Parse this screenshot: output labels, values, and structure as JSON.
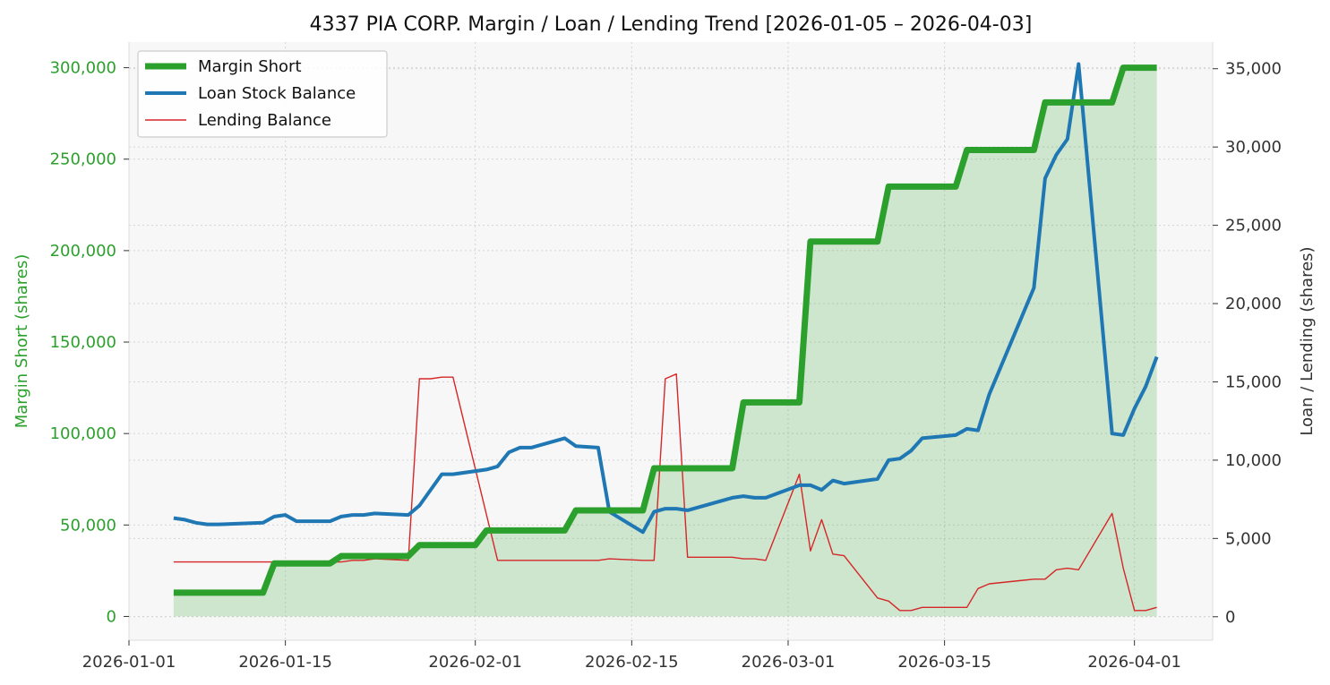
{
  "chart_data": {
    "type": "line",
    "title": "4337 PIA CORP. Margin / Loan / Lending Trend [2026-01-05 – 2026-04-03]",
    "xlabel": "",
    "ylabel_left": "Margin Short (shares)",
    "ylabel_right": "Loan / Lending (shares)",
    "ylim_left": [
      -13000,
      314000
    ],
    "ylim_right": [
      -1500,
      36700
    ],
    "xlim": [
      "2026-01-01",
      "2026-04-08"
    ],
    "x_ticks": [
      "2026-01-01",
      "2026-01-15",
      "2026-02-01",
      "2026-02-15",
      "2026-03-01",
      "2026-03-15",
      "2026-04-01"
    ],
    "y_ticks_left": [
      0,
      50000,
      100000,
      150000,
      200000,
      250000,
      300000
    ],
    "y_ticks_left_labels": [
      "0",
      "50,000",
      "100,000",
      "150,000",
      "200,000",
      "250,000",
      "300,000"
    ],
    "y_ticks_right": [
      0,
      5000,
      10000,
      15000,
      20000,
      25000,
      30000,
      35000
    ],
    "y_ticks_right_labels": [
      "0",
      "5,000",
      "10,000",
      "15,000",
      "20,000",
      "25,000",
      "30,000",
      "35,000"
    ],
    "grid": true,
    "legend_position": "top-left",
    "series": [
      {
        "name": "Margin Short",
        "axis": "left",
        "color": "#2ca02c",
        "fill": true,
        "points": [
          [
            "2026-01-05",
            13000
          ],
          [
            "2026-01-13",
            13000
          ],
          [
            "2026-01-14",
            29000
          ],
          [
            "2026-01-19",
            29000
          ],
          [
            "2026-01-20",
            33000
          ],
          [
            "2026-01-26",
            33000
          ],
          [
            "2026-01-27",
            39000
          ],
          [
            "2026-02-01",
            39000
          ],
          [
            "2026-02-02",
            47000
          ],
          [
            "2026-02-09",
            47000
          ],
          [
            "2026-02-10",
            58000
          ],
          [
            "2026-02-16",
            58000
          ],
          [
            "2026-02-17",
            81000
          ],
          [
            "2026-02-24",
            81000
          ],
          [
            "2026-02-25",
            117000
          ],
          [
            "2026-03-02",
            117000
          ],
          [
            "2026-03-03",
            205000
          ],
          [
            "2026-03-09",
            205000
          ],
          [
            "2026-03-10",
            235000
          ],
          [
            "2026-03-16",
            235000
          ],
          [
            "2026-03-17",
            255000
          ],
          [
            "2026-03-23",
            255000
          ],
          [
            "2026-03-24",
            281000
          ],
          [
            "2026-03-30",
            281000
          ],
          [
            "2026-03-31",
            300000
          ],
          [
            "2026-04-03",
            300000
          ]
        ]
      },
      {
        "name": "Loan Stock Balance",
        "axis": "right",
        "color": "#1f77b4",
        "fill": false,
        "points": [
          [
            "2026-01-05",
            6300
          ],
          [
            "2026-01-06",
            6200
          ],
          [
            "2026-01-07",
            6000
          ],
          [
            "2026-01-08",
            5900
          ],
          [
            "2026-01-09",
            5900
          ],
          [
            "2026-01-13",
            6000
          ],
          [
            "2026-01-14",
            6400
          ],
          [
            "2026-01-15",
            6500
          ],
          [
            "2026-01-16",
            6100
          ],
          [
            "2026-01-19",
            6100
          ],
          [
            "2026-01-20",
            6400
          ],
          [
            "2026-01-21",
            6500
          ],
          [
            "2026-01-22",
            6500
          ],
          [
            "2026-01-23",
            6600
          ],
          [
            "2026-01-26",
            6500
          ],
          [
            "2026-01-27",
            7100
          ],
          [
            "2026-01-28",
            8100
          ],
          [
            "2026-01-29",
            9100
          ],
          [
            "2026-01-30",
            9100
          ],
          [
            "2026-02-02",
            9400
          ],
          [
            "2026-02-03",
            9600
          ],
          [
            "2026-02-04",
            10500
          ],
          [
            "2026-02-05",
            10800
          ],
          [
            "2026-02-06",
            10800
          ],
          [
            "2026-02-09",
            11400
          ],
          [
            "2026-02-10",
            10900
          ],
          [
            "2026-02-12",
            10800
          ],
          [
            "2026-02-13",
            6700
          ],
          [
            "2026-02-16",
            5400
          ],
          [
            "2026-02-17",
            6700
          ],
          [
            "2026-02-18",
            6900
          ],
          [
            "2026-02-19",
            6900
          ],
          [
            "2026-02-20",
            6800
          ],
          [
            "2026-02-24",
            7600
          ],
          [
            "2026-02-25",
            7700
          ],
          [
            "2026-02-26",
            7600
          ],
          [
            "2026-02-27",
            7600
          ],
          [
            "2026-03-02",
            8400
          ],
          [
            "2026-03-03",
            8400
          ],
          [
            "2026-03-04",
            8100
          ],
          [
            "2026-03-05",
            8700
          ],
          [
            "2026-03-06",
            8500
          ],
          [
            "2026-03-09",
            8800
          ],
          [
            "2026-03-10",
            10000
          ],
          [
            "2026-03-11",
            10100
          ],
          [
            "2026-03-12",
            10600
          ],
          [
            "2026-03-13",
            11400
          ],
          [
            "2026-03-16",
            11600
          ],
          [
            "2026-03-17",
            12000
          ],
          [
            "2026-03-18",
            11900
          ],
          [
            "2026-03-19",
            14200
          ],
          [
            "2026-03-23",
            21000
          ],
          [
            "2026-03-24",
            28000
          ],
          [
            "2026-03-25",
            29500
          ],
          [
            "2026-03-26",
            30500
          ],
          [
            "2026-03-27",
            35300
          ],
          [
            "2026-03-30",
            11700
          ],
          [
            "2026-03-31",
            11600
          ],
          [
            "2026-04-01",
            13300
          ],
          [
            "2026-04-02",
            14700
          ],
          [
            "2026-04-03",
            16600
          ]
        ]
      },
      {
        "name": "Lending Balance",
        "axis": "right",
        "color": "#d62728",
        "fill": false,
        "points": [
          [
            "2026-01-05",
            3500
          ],
          [
            "2026-01-19",
            3500
          ],
          [
            "2026-01-20",
            3500
          ],
          [
            "2026-01-21",
            3600
          ],
          [
            "2026-01-22",
            3600
          ],
          [
            "2026-01-23",
            3700
          ],
          [
            "2026-01-26",
            3600
          ],
          [
            "2026-01-27",
            15200
          ],
          [
            "2026-01-28",
            15200
          ],
          [
            "2026-01-29",
            15300
          ],
          [
            "2026-01-30",
            15300
          ],
          [
            "2026-02-03",
            3600
          ],
          [
            "2026-02-12",
            3600
          ],
          [
            "2026-02-13",
            3700
          ],
          [
            "2026-02-16",
            3600
          ],
          [
            "2026-02-17",
            3600
          ],
          [
            "2026-02-18",
            15200
          ],
          [
            "2026-02-19",
            15500
          ],
          [
            "2026-02-20",
            3800
          ],
          [
            "2026-02-24",
            3800
          ],
          [
            "2026-02-25",
            3700
          ],
          [
            "2026-02-26",
            3700
          ],
          [
            "2026-02-27",
            3600
          ],
          [
            "2026-03-02",
            9100
          ],
          [
            "2026-03-03",
            4200
          ],
          [
            "2026-03-04",
            6200
          ],
          [
            "2026-03-05",
            4000
          ],
          [
            "2026-03-06",
            3900
          ],
          [
            "2026-03-09",
            1200
          ],
          [
            "2026-03-10",
            1000
          ],
          [
            "2026-03-11",
            400
          ],
          [
            "2026-03-12",
            400
          ],
          [
            "2026-03-13",
            600
          ],
          [
            "2026-03-17",
            600
          ],
          [
            "2026-03-18",
            1800
          ],
          [
            "2026-03-19",
            2100
          ],
          [
            "2026-03-23",
            2400
          ],
          [
            "2026-03-24",
            2400
          ],
          [
            "2026-03-25",
            3000
          ],
          [
            "2026-03-26",
            3100
          ],
          [
            "2026-03-27",
            3000
          ],
          [
            "2026-03-30",
            6600
          ],
          [
            "2026-03-31",
            3100
          ],
          [
            "2026-04-01",
            400
          ],
          [
            "2026-04-02",
            400
          ],
          [
            "2026-04-03",
            600
          ]
        ]
      }
    ]
  }
}
